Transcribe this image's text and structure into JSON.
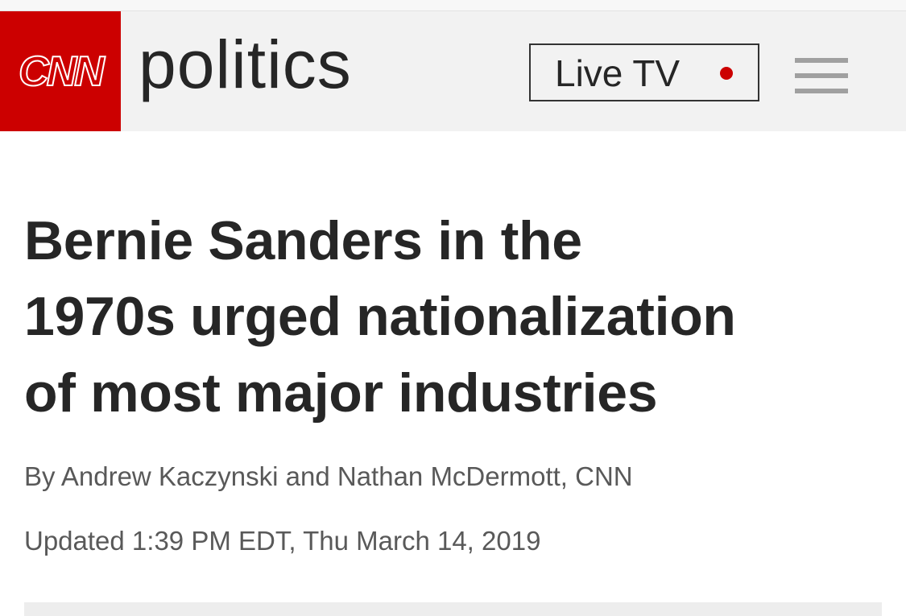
{
  "header": {
    "logo": "CNN",
    "section": "politics",
    "live_button": "Live TV"
  },
  "article": {
    "headline_lines": [
      "Bernie Sanders in the",
      "1970s urged nationalization",
      "of most major industries"
    ],
    "byline": "By Andrew Kaczynski and Nathan McDermott, CNN",
    "timestamp": "Updated 1:39 PM EDT, Thu March 14, 2019"
  }
}
